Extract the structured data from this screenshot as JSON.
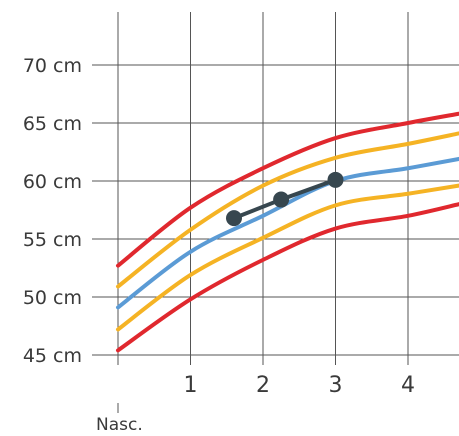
{
  "chart_data": {
    "type": "line",
    "title": "",
    "xlabel": "",
    "ylabel": "",
    "xlim": [
      0,
      4.7
    ],
    "ylim": [
      45,
      70
    ],
    "grid": true,
    "y_ticks": [
      {
        "value": 45,
        "label": "45 cm"
      },
      {
        "value": 50,
        "label": "50 cm"
      },
      {
        "value": 55,
        "label": "55 cm"
      },
      {
        "value": 60,
        "label": "60 cm"
      },
      {
        "value": 65,
        "label": "65 cm"
      },
      {
        "value": 70,
        "label": "70 cm"
      }
    ],
    "x_ticks": [
      {
        "value": 1,
        "label": "1"
      },
      {
        "value": 2,
        "label": "2"
      },
      {
        "value": 3,
        "label": "3"
      },
      {
        "value": 4,
        "label": "4"
      }
    ],
    "origin_label": "Nasc.",
    "series": [
      {
        "color": "#e0282e",
        "points": [
          [
            0,
            52.7
          ],
          [
            1,
            57.7
          ],
          [
            2,
            61.1
          ],
          [
            3,
            63.7
          ],
          [
            4,
            65.0
          ],
          [
            4.7,
            65.8
          ]
        ]
      },
      {
        "color": "#f5b324",
        "points": [
          [
            0,
            50.9
          ],
          [
            1,
            55.8
          ],
          [
            2,
            59.6
          ],
          [
            3,
            62.0
          ],
          [
            4,
            63.2
          ],
          [
            4.7,
            64.1
          ]
        ]
      },
      {
        "color": "#5b9bd5",
        "points": [
          [
            0,
            49.1
          ],
          [
            1,
            53.9
          ],
          [
            2,
            57.0
          ],
          [
            3,
            60.0
          ],
          [
            4,
            61.1
          ],
          [
            4.7,
            61.9
          ]
        ]
      },
      {
        "color": "#f5b324",
        "points": [
          [
            0,
            47.2
          ],
          [
            1,
            51.9
          ],
          [
            2,
            55.1
          ],
          [
            3,
            57.9
          ],
          [
            4,
            58.9
          ],
          [
            4.7,
            59.6
          ]
        ]
      },
      {
        "color": "#e0282e",
        "points": [
          [
            0,
            45.4
          ],
          [
            1,
            49.8
          ],
          [
            2,
            53.2
          ],
          [
            3,
            55.9
          ],
          [
            4,
            57.0
          ],
          [
            4.7,
            58.0
          ]
        ]
      }
    ],
    "measurements": {
      "color": "#37474f",
      "points": [
        [
          1.6,
          56.8
        ],
        [
          2.25,
          58.4
        ],
        [
          3.0,
          60.1
        ]
      ]
    }
  }
}
